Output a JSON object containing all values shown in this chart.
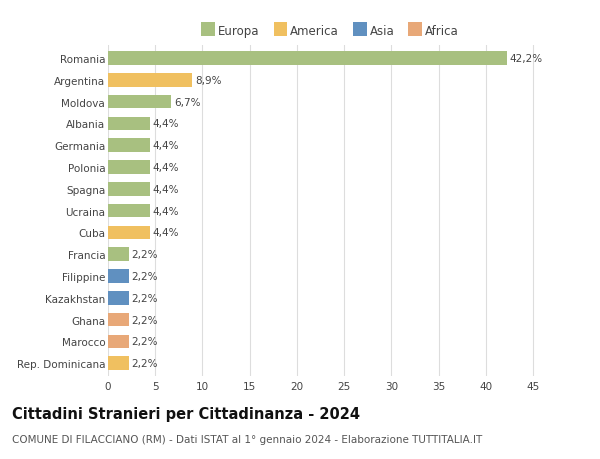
{
  "countries": [
    "Romania",
    "Argentina",
    "Moldova",
    "Albania",
    "Germania",
    "Polonia",
    "Spagna",
    "Ucraina",
    "Cuba",
    "Francia",
    "Filippine",
    "Kazakhstan",
    "Ghana",
    "Marocco",
    "Rep. Dominicana"
  ],
  "values": [
    42.2,
    8.9,
    6.7,
    4.4,
    4.4,
    4.4,
    4.4,
    4.4,
    4.4,
    2.2,
    2.2,
    2.2,
    2.2,
    2.2,
    2.2
  ],
  "labels": [
    "42,2%",
    "8,9%",
    "6,7%",
    "4,4%",
    "4,4%",
    "4,4%",
    "4,4%",
    "4,4%",
    "4,4%",
    "2,2%",
    "2,2%",
    "2,2%",
    "2,2%",
    "2,2%",
    "2,2%"
  ],
  "continents": [
    "Europa",
    "America",
    "Europa",
    "Europa",
    "Europa",
    "Europa",
    "Europa",
    "Europa",
    "America",
    "Europa",
    "Asia",
    "Asia",
    "Africa",
    "Africa",
    "America"
  ],
  "continent_colors": {
    "Europa": "#a8c080",
    "America": "#f0c060",
    "Asia": "#6090c0",
    "Africa": "#e8a878"
  },
  "legend_order": [
    "Europa",
    "America",
    "Asia",
    "Africa"
  ],
  "title": "Cittadini Stranieri per Cittadinanza - 2024",
  "subtitle": "COMUNE DI FILACCIANO (RM) - Dati ISTAT al 1° gennaio 2024 - Elaborazione TUTTITALIA.IT",
  "xlim": [
    0,
    47
  ],
  "xticks": [
    0,
    5,
    10,
    15,
    20,
    25,
    30,
    35,
    40,
    45
  ],
  "background_color": "#ffffff",
  "grid_color": "#dddddd",
  "bar_height": 0.62,
  "title_fontsize": 10.5,
  "subtitle_fontsize": 7.5,
  "label_fontsize": 7.5,
  "tick_fontsize": 7.5,
  "legend_fontsize": 8.5
}
